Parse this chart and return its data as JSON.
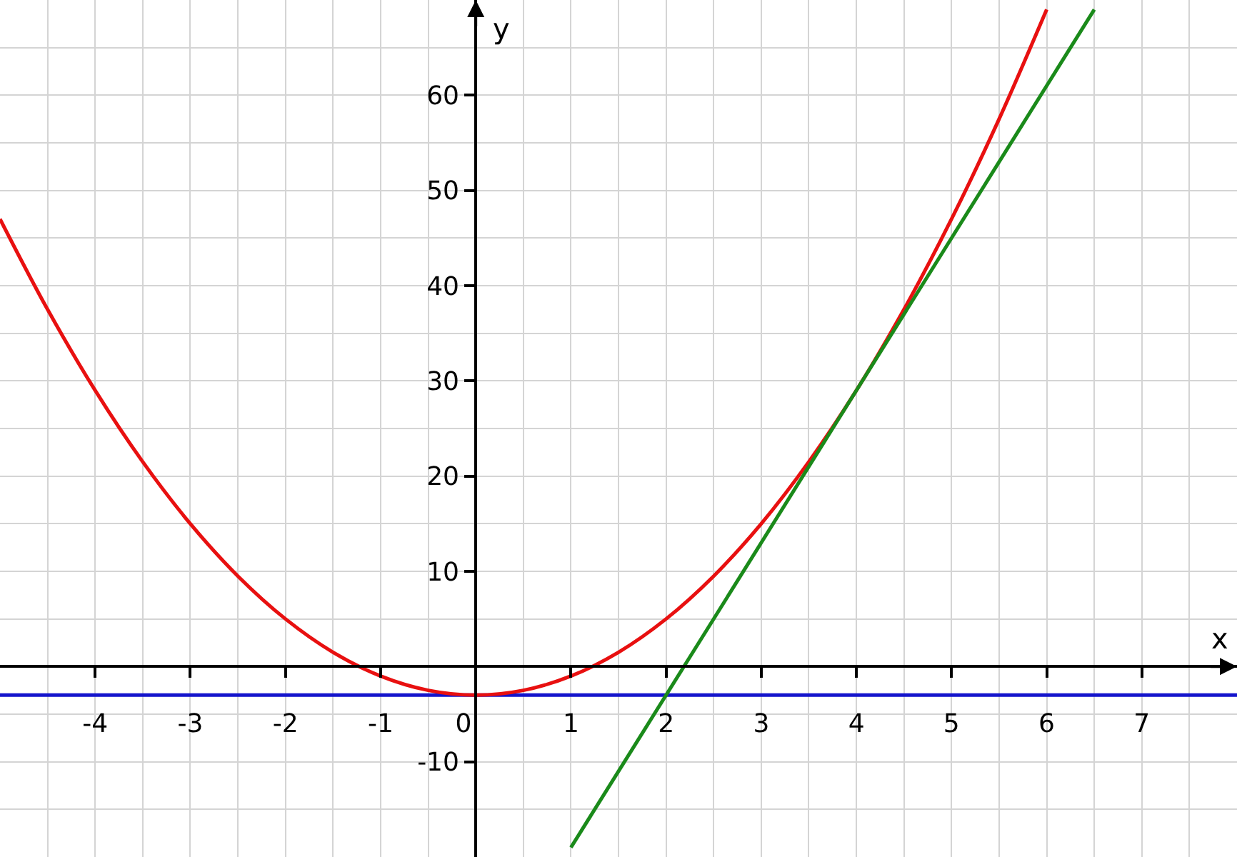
{
  "chart_data": {
    "type": "line",
    "xlabel": "x",
    "ylabel": "y",
    "series": [
      {
        "color": "#1414cc",
        "x": [
          -5,
          8
        ],
        "values": [
          -3,
          -3
        ]
      },
      {
        "color": "#e81010",
        "x": [
          -5,
          -4.5,
          -4,
          -3.5,
          -3,
          -2.5,
          -2,
          -1.5,
          -1,
          -0.5,
          0,
          0.5,
          1,
          1.5,
          2,
          2.5,
          3,
          3.5,
          4,
          4.5,
          5,
          5.5,
          6
        ],
        "values": [
          47,
          37.5,
          29,
          21.5,
          15,
          9.5,
          5,
          1.5,
          -1,
          -2.5,
          -3,
          -2.5,
          -1,
          1.5,
          5,
          9.5,
          15,
          21.5,
          29,
          37.5,
          47,
          57.5,
          69
        ]
      },
      {
        "color": "#1a8a1a",
        "x": [
          1,
          6.5
        ],
        "values": [
          -19,
          69
        ]
      }
    ],
    "xlim": [
      -5,
      8
    ],
    "ylim": [
      -20,
      70
    ],
    "xticks": [
      -4,
      -3,
      -2,
      -1,
      0,
      1,
      2,
      3,
      4,
      5,
      6,
      7
    ],
    "yticks": [
      -10,
      10,
      20,
      30,
      40,
      50,
      60
    ],
    "grid": true,
    "marker": "none",
    "line_style": "solid"
  }
}
